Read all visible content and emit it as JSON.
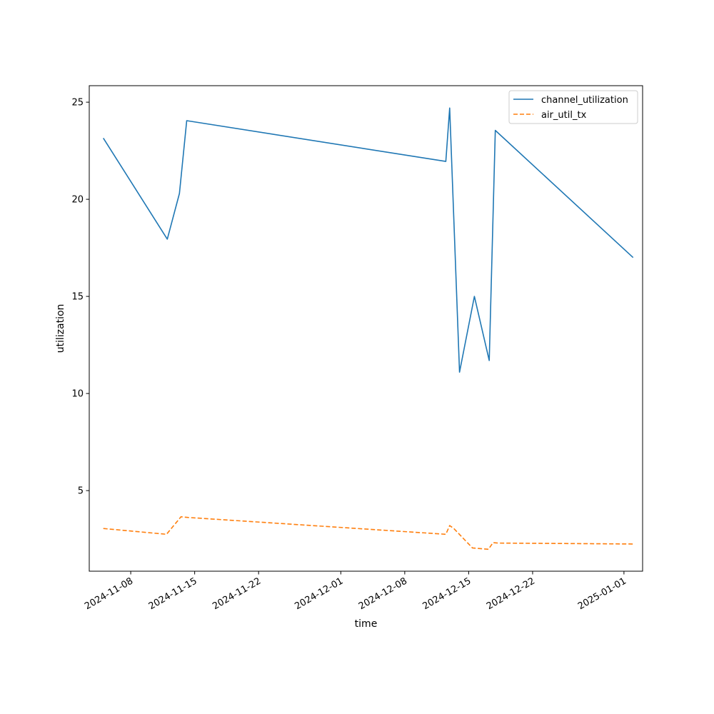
{
  "chart_data": {
    "type": "line",
    "xlabel": "time",
    "ylabel": "utilization",
    "x_type": "date",
    "xlim": [
      "2024-11-03T11:00",
      "2025-01-03T01:00"
    ],
    "ylim": [
      0.85,
      25.85
    ],
    "x_ticks": [
      "2024-11-08",
      "2024-11-15",
      "2024-11-22",
      "2024-12-01",
      "2024-12-08",
      "2024-12-15",
      "2024-12-22",
      "2025-01-01"
    ],
    "y_ticks": [
      5,
      10,
      15,
      20,
      25
    ],
    "legend": {
      "position": "top-right",
      "entries": [
        "channel_utilization",
        "air_util_tx"
      ]
    },
    "grid": false,
    "series": [
      {
        "name": "channel_utilization",
        "color": "#1f77b4",
        "style": "solid",
        "points": [
          [
            "2024-11-05T00:00",
            23.15
          ],
          [
            "2024-11-12T00:00",
            17.95
          ],
          [
            "2024-11-13T08:00",
            20.3
          ],
          [
            "2024-11-14T03:00",
            24.05
          ],
          [
            "2024-12-12T12:00",
            21.95
          ],
          [
            "2024-12-12T22:00",
            24.7
          ],
          [
            "2024-12-14T00:00",
            11.1
          ],
          [
            "2024-12-15T15:00",
            15.0
          ],
          [
            "2024-12-17T06:00",
            11.7
          ],
          [
            "2024-12-17T22:00",
            23.55
          ],
          [
            "2025-01-02T00:00",
            17.0
          ]
        ]
      },
      {
        "name": "air_util_tx",
        "color": "#ff7f0e",
        "style": "dashed",
        "points": [
          [
            "2024-11-05T00:00",
            3.05
          ],
          [
            "2024-11-11T22:00",
            2.75
          ],
          [
            "2024-11-13T12:00",
            3.65
          ],
          [
            "2024-11-14T06:00",
            3.62
          ],
          [
            "2024-12-12T12:00",
            2.75
          ],
          [
            "2024-12-12T22:00",
            3.2
          ],
          [
            "2024-12-13T09:00",
            3.05
          ],
          [
            "2024-12-15T10:00",
            2.05
          ],
          [
            "2024-12-17T04:00",
            1.98
          ],
          [
            "2024-12-17T16:00",
            2.32
          ],
          [
            "2024-12-18T06:00",
            2.3
          ],
          [
            "2025-01-02T00:00",
            2.25
          ]
        ]
      }
    ]
  }
}
